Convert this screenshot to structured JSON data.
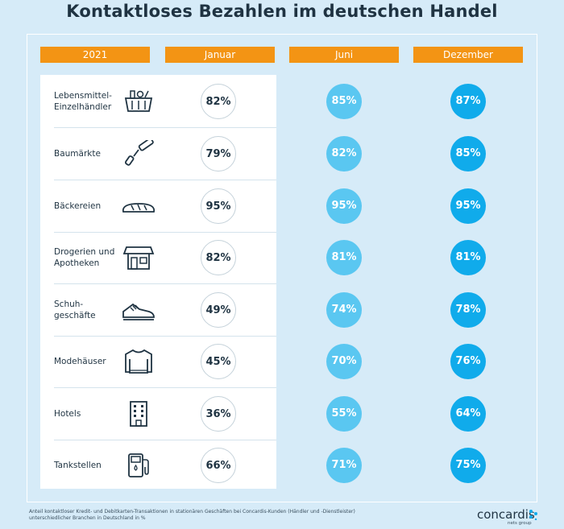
{
  "title": "Kontaktloses Bezahlen im deutschen Handel",
  "header": {
    "year": "2021",
    "col1": "Januar",
    "col2": "Juni",
    "col3": "Dezember"
  },
  "colors": {
    "header_orange": "#f39414",
    "juni_blue": "#5ac7f1",
    "dezember_blue": "#10abeb",
    "background": "#d6ebf8"
  },
  "rows": [
    {
      "label_lines": [
        "Lebensmittel-",
        "Einzelhändler"
      ],
      "icon": "shopping-basket-icon",
      "jan": "82%",
      "jun": "85%",
      "dez": "87%"
    },
    {
      "label_lines": [
        "Baumärkte"
      ],
      "icon": "paint-roller-icon",
      "jan": "79%",
      "jun": "82%",
      "dez": "85%"
    },
    {
      "label_lines": [
        "Bäckereien"
      ],
      "icon": "bread-icon",
      "jan": "95%",
      "jun": "95%",
      "dez": "95%"
    },
    {
      "label_lines": [
        "Drogerien und",
        "Apotheken"
      ],
      "icon": "storefront-icon",
      "jan": "82%",
      "jun": "81%",
      "dez": "81%"
    },
    {
      "label_lines": [
        "Schuh-",
        "geschäfte"
      ],
      "icon": "sneaker-icon",
      "jan": "49%",
      "jun": "74%",
      "dez": "78%"
    },
    {
      "label_lines": [
        "Modehäuser"
      ],
      "icon": "sweater-icon",
      "jan": "45%",
      "jun": "70%",
      "dez": "76%"
    },
    {
      "label_lines": [
        "Hotels"
      ],
      "icon": "hotel-building-icon",
      "jan": "36%",
      "jun": "55%",
      "dez": "64%"
    },
    {
      "label_lines": [
        "Tankstellen"
      ],
      "icon": "fuel-pump-icon",
      "jan": "66%",
      "jun": "71%",
      "dez": "75%"
    }
  ],
  "chart_data": {
    "type": "table",
    "title": "Kontaktloses Bezahlen im deutschen Handel",
    "columns": [
      "Januar",
      "Juni",
      "Dezember"
    ],
    "categories": [
      "Lebensmittel-Einzelhändler",
      "Baumärkte",
      "Bäckereien",
      "Drogerien und Apotheken",
      "Schuhgeschäfte",
      "Modehäuser",
      "Hotels",
      "Tankstellen"
    ],
    "series": [
      {
        "name": "Januar",
        "values": [
          82,
          79,
          95,
          82,
          49,
          45,
          36,
          66
        ]
      },
      {
        "name": "Juni",
        "values": [
          85,
          82,
          95,
          81,
          74,
          70,
          55,
          71
        ]
      },
      {
        "name": "Dezember",
        "values": [
          87,
          85,
          95,
          81,
          78,
          76,
          64,
          75
        ]
      }
    ],
    "unit": "%"
  },
  "footnote": {
    "line1": "Anteil kontaktloser Kredit- und Debitkarten-Transaktionen in stationären Geschäften bei Concardis-Kunden (Händler und -Dienstleister)",
    "line2": "unterschiedlicher Branchen in Deutschland  in %"
  },
  "logo": {
    "name": "concardis",
    "sub": "nets group"
  }
}
